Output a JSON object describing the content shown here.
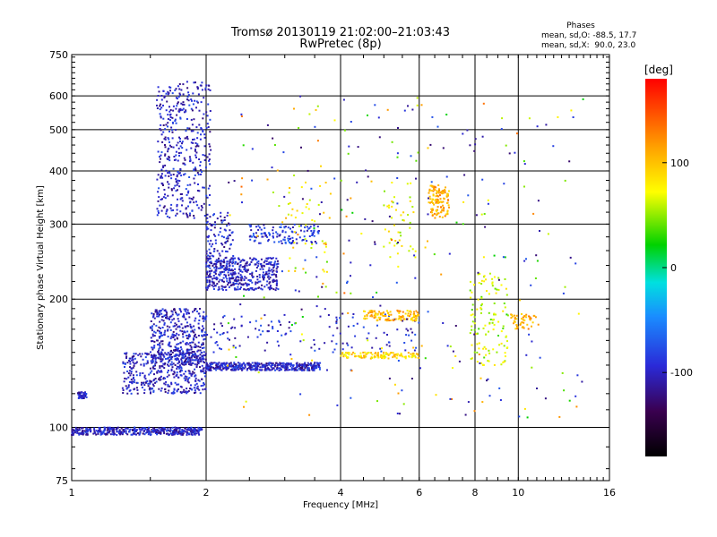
{
  "title_line1": "Tromsø 20130119 21:02:00–21:03:43",
  "title_line2": "RwPretec (8p)",
  "stats": {
    "heading": "Phases",
    "line1": "mean, sd,O: -88.5, 17.7",
    "line2": "mean, sd,X:  90.0, 23.0"
  },
  "colorbar": {
    "unit": "[deg]",
    "ticks": [
      "100",
      "0",
      "-100"
    ],
    "tick_values": [
      100,
      0,
      -100
    ],
    "range": [
      -180,
      180
    ]
  },
  "chart_data": {
    "type": "scatter",
    "title": "Tromsø 20130119 21:02:00–21:03:43",
    "subtitle": "RwPretec (8p)",
    "xlabel": "Frequency [MHz]",
    "ylabel": "Stationary phase Virtual Height [km]",
    "x_scale": "log",
    "y_scale": "log",
    "xlim": [
      1,
      16
    ],
    "ylim": [
      75,
      750
    ],
    "x_ticks": [
      1,
      2,
      4,
      6,
      8,
      10,
      16
    ],
    "x_tick_labels": [
      "1",
      "2",
      "4",
      "6",
      "8",
      "10",
      "16"
    ],
    "y_ticks": [
      75,
      100,
      200,
      300,
      400,
      500,
      600,
      750
    ],
    "y_tick_labels": [
      "75",
      "100",
      "200",
      "300",
      "400",
      "500",
      "600",
      "750"
    ],
    "grid": true,
    "color_variable": "Phase [deg]",
    "traces": [
      {
        "x_range": [
          1.0,
          1.96
        ],
        "y_range": [
          96,
          100
        ],
        "phase": -100,
        "density": "high"
      },
      {
        "x_range": [
          1.03,
          1.08
        ],
        "y_range": [
          117,
          121
        ],
        "phase": -100,
        "density": "low"
      },
      {
        "x_range": [
          1.3,
          2.0
        ],
        "y_range": [
          120,
          150
        ],
        "phase": -100,
        "density": "high"
      },
      {
        "x_range": [
          1.5,
          2.0
        ],
        "y_range": [
          140,
          190
        ],
        "phase": -100,
        "density": "high"
      },
      {
        "x_range": [
          2.0,
          3.6
        ],
        "y_range": [
          136,
          142
        ],
        "phase": -100,
        "density": "high"
      },
      {
        "x_range": [
          2.0,
          6.0
        ],
        "y_range": [
          150,
          185
        ],
        "phase": -95,
        "density": "medium"
      },
      {
        "x_range": [
          4.0,
          6.0
        ],
        "y_range": [
          145,
          150
        ],
        "phase": 90,
        "density": "medium"
      },
      {
        "x_range": [
          4.5,
          6.0
        ],
        "y_range": [
          178,
          188
        ],
        "phase": 105,
        "density": "medium"
      },
      {
        "x_range": [
          1.55,
          2.05
        ],
        "y_range": [
          310,
          650
        ],
        "phase": -100,
        "density": "high"
      },
      {
        "x_range": [
          2.0,
          2.9
        ],
        "y_range": [
          210,
          250
        ],
        "phase": -100,
        "density": "high"
      },
      {
        "x_range": [
          2.0,
          2.3
        ],
        "y_range": [
          230,
          320
        ],
        "phase": -100,
        "density": "medium"
      },
      {
        "x_range": [
          2.5,
          3.6
        ],
        "y_range": [
          270,
          300
        ],
        "phase": -90,
        "density": "medium"
      },
      {
        "x_range": [
          3.0,
          3.8
        ],
        "y_range": [
          230,
          380
        ],
        "phase": 80,
        "density": "low"
      },
      {
        "x_range": [
          6.3,
          7.0
        ],
        "y_range": [
          310,
          370
        ],
        "phase": 110,
        "density": "medium"
      },
      {
        "x_range": [
          5.0,
          6.0
        ],
        "y_range": [
          250,
          380
        ],
        "phase": 70,
        "density": "low"
      },
      {
        "x_range": [
          7.8,
          9.5
        ],
        "y_range": [
          140,
          230
        ],
        "phase": 60,
        "density": "medium"
      },
      {
        "x_range": [
          9.5,
          11.0
        ],
        "y_range": [
          170,
          185
        ],
        "phase": 110,
        "density": "low"
      },
      {
        "x_range": [
          2.2,
          14.0
        ],
        "y_range": [
          105,
          600
        ],
        "phase": 0,
        "density": "sparse"
      }
    ]
  }
}
